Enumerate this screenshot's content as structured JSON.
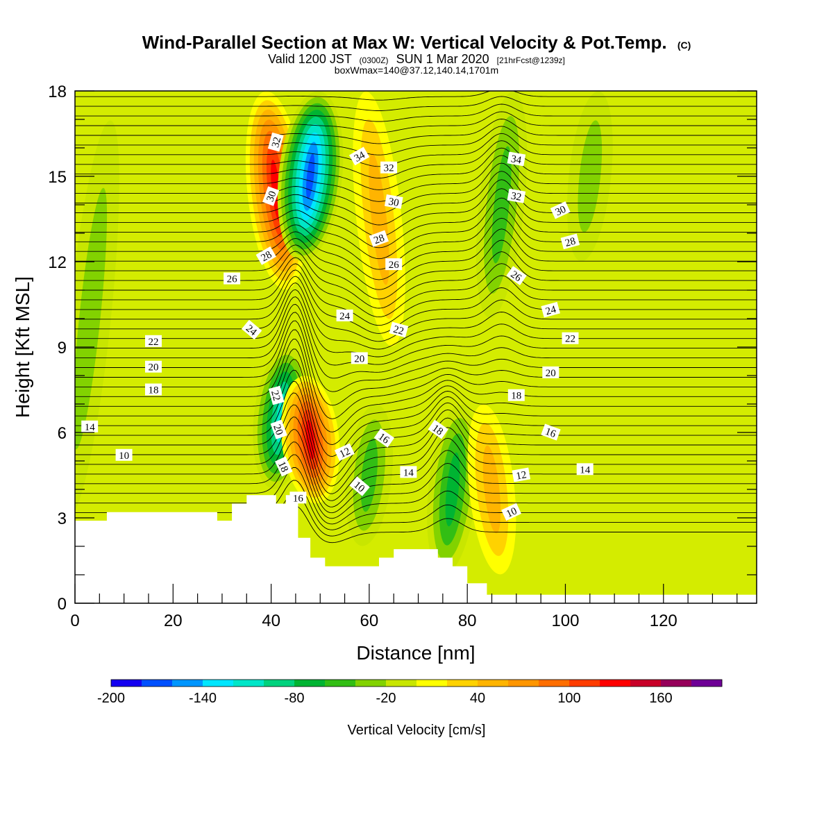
{
  "title": {
    "main": "Wind-Parallel Section at Max W: Vertical Velocity & Pot.Temp.",
    "main_suffix": "(C)",
    "line2_a": "Valid 1200 JST",
    "line2_b": "(0300Z)",
    "line2_c": "SUN 1 Mar 2020",
    "line2_d": "[21hrFcst@1239z]",
    "line3": "boxWmax=140@37.12,140.14,1701m"
  },
  "chart_data": {
    "type": "heatmap",
    "xlabel": "Distance [nm]",
    "ylabel": "Height [Kft MSL]",
    "xlim": [
      0,
      139
    ],
    "ylim": [
      0,
      18
    ],
    "x_ticks": [
      0,
      20,
      40,
      60,
      80,
      100,
      120
    ],
    "y_ticks": [
      0,
      3,
      6,
      9,
      12,
      15,
      18
    ],
    "colorbar": {
      "title": "Vertical Velocity [cm/s]",
      "levels": [
        -200,
        -180,
        -160,
        -140,
        -120,
        -100,
        -80,
        -60,
        -40,
        -20,
        0,
        20,
        40,
        60,
        80,
        100,
        120,
        140,
        160,
        180,
        200
      ],
      "tick_labels": [
        "-200",
        "-140",
        "-80",
        "-20",
        "40",
        "100",
        "160"
      ],
      "tick_values": [
        -200,
        -140,
        -80,
        -20,
        40,
        100,
        160
      ],
      "colors": [
        "#1400f0",
        "#0050ff",
        "#0096ff",
        "#00e6ff",
        "#00e6c8",
        "#00d27d",
        "#00b432",
        "#32be14",
        "#82d200",
        "#c8e600",
        "#ffff00",
        "#ffd200",
        "#ffb400",
        "#ff9600",
        "#ff6e00",
        "#ff3c00",
        "#ff0000",
        "#c80028",
        "#96005a",
        "#6e0096"
      ]
    },
    "vertical_velocity_features": [
      {
        "x_center": 3,
        "y_range": [
          3,
          17
        ],
        "w": -30
      },
      {
        "x_center": 41,
        "y_range": [
          11,
          18
        ],
        "w": 130
      },
      {
        "x_center": 42,
        "y_range": [
          4,
          9
        ],
        "w": -110
      },
      {
        "x_center": 48,
        "y_range": [
          12,
          18
        ],
        "w": -170
      },
      {
        "x_center": 48,
        "y_range": [
          3.5,
          8
        ],
        "w": 130
      },
      {
        "x_center": 62,
        "y_range": [
          9,
          18
        ],
        "w": 50
      },
      {
        "x_center": 60,
        "y_range": [
          2,
          7
        ],
        "w": -50
      },
      {
        "x_center": 77,
        "y_range": [
          1,
          7
        ],
        "w": -80
      },
      {
        "x_center": 85,
        "y_range": [
          1,
          7
        ],
        "w": 50
      },
      {
        "x_center": 87,
        "y_range": [
          10,
          18
        ],
        "w": -60
      },
      {
        "x_center": 105,
        "y_range": [
          12,
          18
        ],
        "w": -40
      }
    ],
    "potential_temperature_contours": {
      "units": "C",
      "levels": [
        10,
        12,
        14,
        16,
        18,
        20,
        22,
        24,
        26,
        28,
        30,
        32,
        34
      ],
      "labels": [
        {
          "text": "14",
          "x": 3,
          "y": 6.2,
          "rot": 0
        },
        {
          "text": "10",
          "x": 10,
          "y": 5.2,
          "rot": 0
        },
        {
          "text": "22",
          "x": 16,
          "y": 9.2,
          "rot": 0
        },
        {
          "text": "20",
          "x": 16,
          "y": 8.3,
          "rot": 0
        },
        {
          "text": "18",
          "x": 16,
          "y": 7.5,
          "rot": 0
        },
        {
          "text": "26",
          "x": 32,
          "y": 11.4,
          "rot": 0
        },
        {
          "text": "24",
          "x": 36,
          "y": 9.6,
          "rot": 40
        },
        {
          "text": "28",
          "x": 39,
          "y": 12.2,
          "rot": -30
        },
        {
          "text": "30",
          "x": 40,
          "y": 14.3,
          "rot": -70
        },
        {
          "text": "32",
          "x": 41,
          "y": 16.2,
          "rot": -75
        },
        {
          "text": "22",
          "x": 41,
          "y": 7.3,
          "rot": 75
        },
        {
          "text": "20",
          "x": 41.5,
          "y": 6.1,
          "rot": 70
        },
        {
          "text": "18",
          "x": 42.5,
          "y": 4.8,
          "rot": 65
        },
        {
          "text": "16",
          "x": 45.5,
          "y": 3.7,
          "rot": 0
        },
        {
          "text": "34",
          "x": 58,
          "y": 15.7,
          "rot": -30
        },
        {
          "text": "32",
          "x": 64,
          "y": 15.3,
          "rot": 0
        },
        {
          "text": "30",
          "x": 65,
          "y": 14.1,
          "rot": 10
        },
        {
          "text": "28",
          "x": 62,
          "y": 12.8,
          "rot": -20
        },
        {
          "text": "26",
          "x": 65,
          "y": 11.9,
          "rot": 0
        },
        {
          "text": "24",
          "x": 55,
          "y": 10.1,
          "rot": 0
        },
        {
          "text": "22",
          "x": 66,
          "y": 9.6,
          "rot": 15
        },
        {
          "text": "20",
          "x": 58,
          "y": 8.6,
          "rot": 0
        },
        {
          "text": "12",
          "x": 55,
          "y": 5.3,
          "rot": -25
        },
        {
          "text": "16",
          "x": 63,
          "y": 5.8,
          "rot": 35
        },
        {
          "text": "10",
          "x": 58,
          "y": 4.1,
          "rot": 40
        },
        {
          "text": "14",
          "x": 68,
          "y": 4.6,
          "rot": 0
        },
        {
          "text": "18",
          "x": 74,
          "y": 6.1,
          "rot": 35
        },
        {
          "text": "34",
          "x": 90,
          "y": 15.6,
          "rot": 10
        },
        {
          "text": "32",
          "x": 90,
          "y": 14.3,
          "rot": 10
        },
        {
          "text": "30",
          "x": 99,
          "y": 13.8,
          "rot": -25
        },
        {
          "text": "28",
          "x": 101,
          "y": 12.7,
          "rot": -15
        },
        {
          "text": "26",
          "x": 90,
          "y": 11.5,
          "rot": 35
        },
        {
          "text": "24",
          "x": 97,
          "y": 10.3,
          "rot": -15
        },
        {
          "text": "22",
          "x": 101,
          "y": 9.3,
          "rot": 0
        },
        {
          "text": "20",
          "x": 97,
          "y": 8.1,
          "rot": 0
        },
        {
          "text": "18",
          "x": 90,
          "y": 7.3,
          "rot": 0
        },
        {
          "text": "16",
          "x": 97,
          "y": 6.0,
          "rot": 20
        },
        {
          "text": "14",
          "x": 104,
          "y": 4.7,
          "rot": 0
        },
        {
          "text": "12",
          "x": 91,
          "y": 4.5,
          "rot": -10
        },
        {
          "text": "10",
          "x": 89,
          "y": 3.2,
          "rot": -25
        }
      ]
    },
    "terrain": [
      [
        0,
        2.9
      ],
      [
        6.5,
        2.9
      ],
      [
        6.5,
        3.2
      ],
      [
        29,
        3.2
      ],
      [
        29,
        2.9
      ],
      [
        32,
        2.9
      ],
      [
        32,
        3.5
      ],
      [
        35,
        3.5
      ],
      [
        35,
        3.8
      ],
      [
        41,
        3.8
      ],
      [
        41,
        3.5
      ],
      [
        43,
        3.5
      ],
      [
        43,
        3.8
      ],
      [
        45.5,
        3.8
      ],
      [
        45.5,
        2.3
      ],
      [
        48,
        2.3
      ],
      [
        48,
        1.6
      ],
      [
        51,
        1.6
      ],
      [
        51,
        1.3
      ],
      [
        62,
        1.3
      ],
      [
        62,
        1.6
      ],
      [
        65,
        1.6
      ],
      [
        65,
        1.9
      ],
      [
        74,
        1.9
      ],
      [
        74,
        1.6
      ],
      [
        77,
        1.6
      ],
      [
        77,
        1.3
      ],
      [
        80,
        1.3
      ],
      [
        80,
        0.7
      ],
      [
        84,
        0.7
      ],
      [
        84,
        0.3
      ],
      [
        139,
        0.3
      ]
    ]
  }
}
